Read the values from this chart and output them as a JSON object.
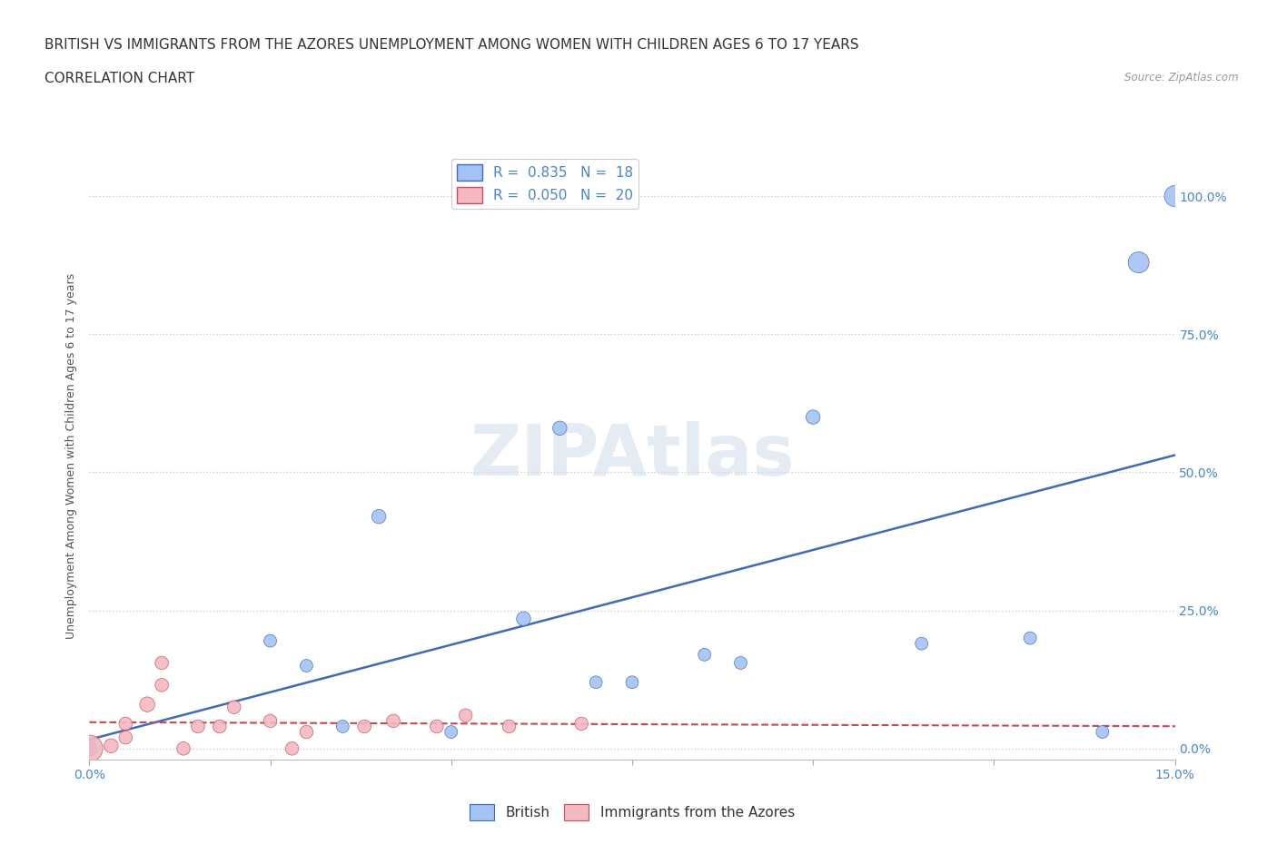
{
  "title_line1": "BRITISH VS IMMIGRANTS FROM THE AZORES UNEMPLOYMENT AMONG WOMEN WITH CHILDREN AGES 6 TO 17 YEARS",
  "title_line2": "CORRELATION CHART",
  "source": "Source: ZipAtlas.com",
  "ylabel": "Unemployment Among Women with Children Ages 6 to 17 years",
  "xlim": [
    0.0,
    0.15
  ],
  "ylim": [
    -0.02,
    1.08
  ],
  "xticks": [
    0.0,
    0.025,
    0.05,
    0.075,
    0.1,
    0.125,
    0.15
  ],
  "xticklabels": [
    "0.0%",
    "",
    "",
    "",
    "",
    "",
    "15.0%"
  ],
  "yticks": [
    0.0,
    0.25,
    0.5,
    0.75,
    1.0
  ],
  "yticklabels": [
    "0.0%",
    "25.0%",
    "50.0%",
    "75.0%",
    "100.0%"
  ],
  "british_color": "#a4c2f4",
  "azores_color": "#f4b8c1",
  "british_R": 0.835,
  "british_N": 18,
  "azores_R": 0.05,
  "azores_N": 20,
  "british_x": [
    0.0,
    0.025,
    0.03,
    0.035,
    0.04,
    0.05,
    0.06,
    0.065,
    0.07,
    0.075,
    0.085,
    0.09,
    0.1,
    0.115,
    0.13,
    0.14,
    0.145,
    0.15
  ],
  "british_y": [
    0.0,
    0.195,
    0.15,
    0.04,
    0.42,
    0.03,
    0.235,
    0.58,
    0.12,
    0.12,
    0.17,
    0.155,
    0.6,
    0.19,
    0.2,
    0.03,
    0.88,
    1.0
  ],
  "british_sizes": [
    30,
    20,
    20,
    20,
    25,
    20,
    25,
    25,
    20,
    20,
    20,
    20,
    25,
    20,
    20,
    20,
    55,
    55
  ],
  "azores_x": [
    0.0,
    0.003,
    0.005,
    0.005,
    0.008,
    0.01,
    0.01,
    0.013,
    0.015,
    0.018,
    0.02,
    0.025,
    0.028,
    0.03,
    0.038,
    0.042,
    0.048,
    0.052,
    0.058,
    0.068
  ],
  "azores_y": [
    0.0,
    0.005,
    0.02,
    0.045,
    0.08,
    0.115,
    0.155,
    0.0,
    0.04,
    0.04,
    0.075,
    0.05,
    0.0,
    0.03,
    0.04,
    0.05,
    0.04,
    0.06,
    0.04,
    0.045
  ],
  "azores_sizes": [
    90,
    25,
    22,
    22,
    28,
    22,
    22,
    22,
    22,
    22,
    22,
    22,
    22,
    22,
    22,
    22,
    22,
    22,
    22,
    22
  ],
  "british_line_color": "#3d6bb5",
  "azores_line_color": "#cc4455",
  "background_color": "#ffffff",
  "grid_color": "#cccccc",
  "watermark": "ZIPAtlas",
  "title_fontsize": 11,
  "subtitle_fontsize": 11,
  "axis_label_fontsize": 9,
  "tick_fontsize": 10,
  "legend_fontsize": 11
}
